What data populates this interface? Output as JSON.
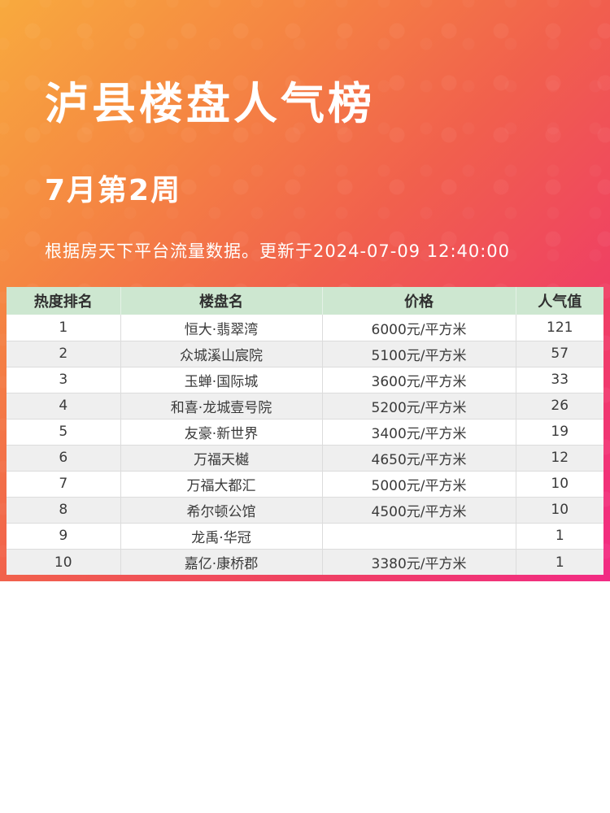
{
  "poster": {
    "title": "泸县楼盘人气榜",
    "subtitle": "7月第2周",
    "meta": "根据房天下平台流量数据。更新于2024-07-09 12:40:00",
    "colors": {
      "gradient_top_left": "#f8aa3e",
      "gradient_middle": "#f1604d",
      "gradient_bottom_right": "#f22b84",
      "header_bg": "#cde7d0",
      "row_alt_bg": "#efefef",
      "poster_text": "#ffffff",
      "table_text": "#3a3a3a"
    }
  },
  "table": {
    "headers": [
      "热度排名",
      "楼盘名",
      "价格",
      "人气值"
    ],
    "rows": [
      {
        "rank": "1",
        "name": "恒大·翡翠湾",
        "price": "6000元/平方米",
        "popularity": "121"
      },
      {
        "rank": "2",
        "name": "众城溪山宸院",
        "price": "5100元/平方米",
        "popularity": "57"
      },
      {
        "rank": "3",
        "name": "玉蝉·国际城",
        "price": "3600元/平方米",
        "popularity": "33"
      },
      {
        "rank": "4",
        "name": "和喜·龙城壹号院",
        "price": "5200元/平方米",
        "popularity": "26"
      },
      {
        "rank": "5",
        "name": "友豪·新世界",
        "price": "3400元/平方米",
        "popularity": "19"
      },
      {
        "rank": "6",
        "name": "万福天樾",
        "price": "4650元/平方米",
        "popularity": "12"
      },
      {
        "rank": "7",
        "name": "万福大都汇",
        "price": "5000元/平方米",
        "popularity": "10"
      },
      {
        "rank": "8",
        "name": "希尔顿公馆",
        "price": "4500元/平方米",
        "popularity": "10"
      },
      {
        "rank": "9",
        "name": "龙禹·华冠",
        "price": "",
        "popularity": "1"
      },
      {
        "rank": "10",
        "name": "嘉亿·康桥郡",
        "price": "3380元/平方米",
        "popularity": "1"
      }
    ]
  },
  "chart_data": {
    "type": "table",
    "title": "泸县楼盘人气榜",
    "subtitle": "7月第2周",
    "note": "根据房天下平台流量数据。更新于2024-07-09 12:40:00",
    "columns": [
      "热度排名",
      "楼盘名",
      "价格",
      "人气值"
    ],
    "rows": [
      [
        "1",
        "恒大·翡翠湾",
        "6000元/平方米",
        121
      ],
      [
        "2",
        "众城溪山宸院",
        "5100元/平方米",
        57
      ],
      [
        "3",
        "玉蝉·国际城",
        "3600元/平方米",
        33
      ],
      [
        "4",
        "和喜·龙城壹号院",
        "5200元/平方米",
        26
      ],
      [
        "5",
        "友豪·新世界",
        "3400元/平方米",
        19
      ],
      [
        "6",
        "万福天樾",
        "4650元/平方米",
        12
      ],
      [
        "7",
        "万福大都汇",
        "5000元/平方米",
        10
      ],
      [
        "8",
        "希尔顿公馆",
        "4500元/平方米",
        10
      ],
      [
        "9",
        "龙禹·华冠",
        "",
        1
      ],
      [
        "10",
        "嘉亿·康桥郡",
        "3380元/平方米",
        1
      ]
    ]
  }
}
